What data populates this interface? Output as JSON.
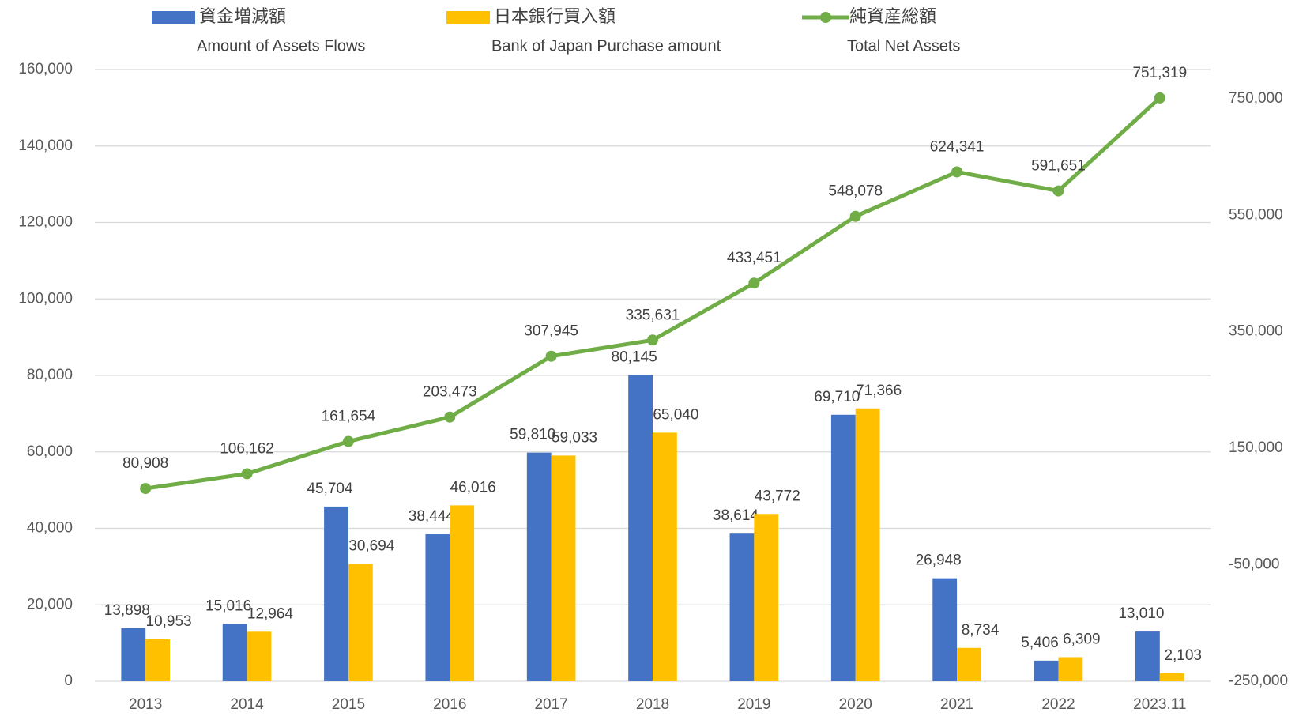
{
  "chart_data": {
    "type": "bar-line",
    "categories": [
      "2013",
      "2014",
      "2015",
      "2016",
      "2017",
      "2018",
      "2019",
      "2020",
      "2021",
      "2022",
      "2023.11"
    ],
    "series": [
      {
        "name": "資金増減額",
        "name_en": "Amount of Assets Flows",
        "type": "bar",
        "color": "#4472c4",
        "values": [
          13898,
          15016,
          45704,
          38444,
          59810,
          80145,
          38614,
          69710,
          26948,
          5406,
          13010
        ],
        "value_labels": [
          "13,898",
          "15,016",
          "45,704",
          "38,444",
          "59,810",
          "80,145",
          "38,614",
          "69,710",
          "26,948",
          "5,406",
          "13,010"
        ]
      },
      {
        "name": "日本銀行買入額",
        "name_en": "Bank of Japan Purchase amount",
        "type": "bar",
        "color": "#ffc000",
        "values": [
          10953,
          12964,
          30694,
          46016,
          59033,
          65040,
          43772,
          71366,
          8734,
          6309,
          2103
        ],
        "value_labels": [
          "10,953",
          "12,964",
          "30,694",
          "46,016",
          "59,033",
          "65,040",
          "43,772",
          "71,366",
          "8,734",
          "6,309",
          "2,103"
        ]
      },
      {
        "name": "純資産総額",
        "name_en": "Total Net Assets",
        "type": "line",
        "axis": "y2",
        "color": "#70ad47",
        "values": [
          80908,
          106162,
          161654,
          203473,
          307945,
          335631,
          433451,
          548078,
          624341,
          591651,
          751319
        ],
        "value_labels": [
          "80,908",
          "106,162",
          "161,654",
          "203,473",
          "307,945",
          "335,631",
          "433,451",
          "548,078",
          "624,341",
          "591,651",
          "751,319"
        ]
      }
    ],
    "ylim": [
      0,
      160000
    ],
    "yticks": [
      0,
      {
        "value": 20000,
        "label": "20,000"
      },
      {
        "value": 40000,
        "label": "40,000"
      },
      {
        "value": 60000,
        "label": "60,000"
      },
      {
        "value": 80000,
        "label": "80,000"
      },
      {
        "value": 100000,
        "label": "100,000"
      },
      {
        "value": 120000,
        "label": "120,000"
      },
      {
        "value": 140000,
        "label": "140,000"
      },
      {
        "value": 160000,
        "label": "160,000"
      }
    ],
    "y2lim": [
      -250000,
      800000
    ],
    "y2ticks": [
      {
        "value": -250000,
        "label": "-250,000"
      },
      {
        "value": -50000,
        "label": "-50,000"
      },
      {
        "value": 150000,
        "label": "150,000"
      },
      {
        "value": 350000,
        "label": "350,000"
      },
      {
        "value": 550000,
        "label": "550,000"
      },
      {
        "value": 750000,
        "label": "750,000"
      }
    ],
    "grid": true
  }
}
